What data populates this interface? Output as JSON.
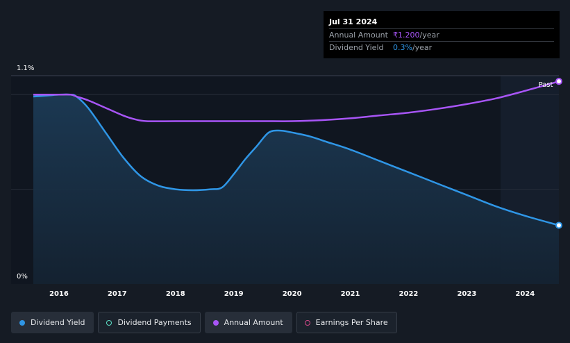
{
  "tooltip": {
    "date": "Jul 31 2024",
    "rows": [
      {
        "label": "Annual Amount",
        "value": "₹1.200",
        "unit": "/year"
      },
      {
        "label": "Dividend Yield",
        "value": "0.3%",
        "unit": "/year"
      }
    ]
  },
  "legend": [
    {
      "label": "Dividend Yield",
      "color": "#2f96e6",
      "active": true
    },
    {
      "label": "Dividend Payments",
      "color": "#5ce0c6",
      "active": false
    },
    {
      "label": "Annual Amount",
      "color": "#a855f7",
      "active": true
    },
    {
      "label": "Earnings Per Share",
      "color": "#d6478a",
      "active": false
    }
  ],
  "chart_data": {
    "type": "area",
    "x_ticks": [
      "2016",
      "2017",
      "2018",
      "2019",
      "2020",
      "2021",
      "2022",
      "2023",
      "2024"
    ],
    "y_ticks": [
      "0%",
      "1.1%"
    ],
    "ylim": [
      0,
      1.1
    ],
    "xlim": [
      2015.56,
      2024.58
    ],
    "past_label": "Past",
    "past_start": 2023.58,
    "series": [
      {
        "name": "Dividend Yield",
        "color": "#2f96e6",
        "x": [
          2015.56,
          2015.8,
          2016.0,
          2016.2,
          2016.3,
          2016.5,
          2016.8,
          2017.1,
          2017.4,
          2017.7,
          2018.0,
          2018.3,
          2018.6,
          2018.8,
          2019.0,
          2019.2,
          2019.4,
          2019.6,
          2019.8,
          2020.0,
          2020.3,
          2020.6,
          2021.0,
          2021.5,
          2022.0,
          2022.5,
          2023.0,
          2023.5,
          2024.0,
          2024.58
        ],
        "y": [
          0.99,
          0.995,
          1.0,
          1.0,
          0.99,
          0.93,
          0.8,
          0.67,
          0.57,
          0.52,
          0.5,
          0.495,
          0.5,
          0.51,
          0.58,
          0.66,
          0.73,
          0.8,
          0.81,
          0.8,
          0.78,
          0.75,
          0.71,
          0.65,
          0.59,
          0.53,
          0.47,
          0.41,
          0.36,
          0.31
        ]
      },
      {
        "name": "Annual Amount",
        "color": "#a855f7",
        "x": [
          2015.56,
          2015.8,
          2016.0,
          2016.2,
          2016.3,
          2016.5,
          2016.8,
          2017.1,
          2017.3,
          2017.5,
          2018.0,
          2018.5,
          2019.0,
          2019.5,
          2020.0,
          2020.5,
          2021.0,
          2021.5,
          2022.0,
          2022.5,
          2023.0,
          2023.5,
          2024.0,
          2024.58
        ],
        "y": [
          1.0,
          1.0,
          1.0,
          1.0,
          0.99,
          0.97,
          0.93,
          0.89,
          0.87,
          0.86,
          0.86,
          0.86,
          0.86,
          0.86,
          0.86,
          0.865,
          0.875,
          0.89,
          0.905,
          0.925,
          0.95,
          0.98,
          1.02,
          1.07
        ]
      }
    ]
  }
}
